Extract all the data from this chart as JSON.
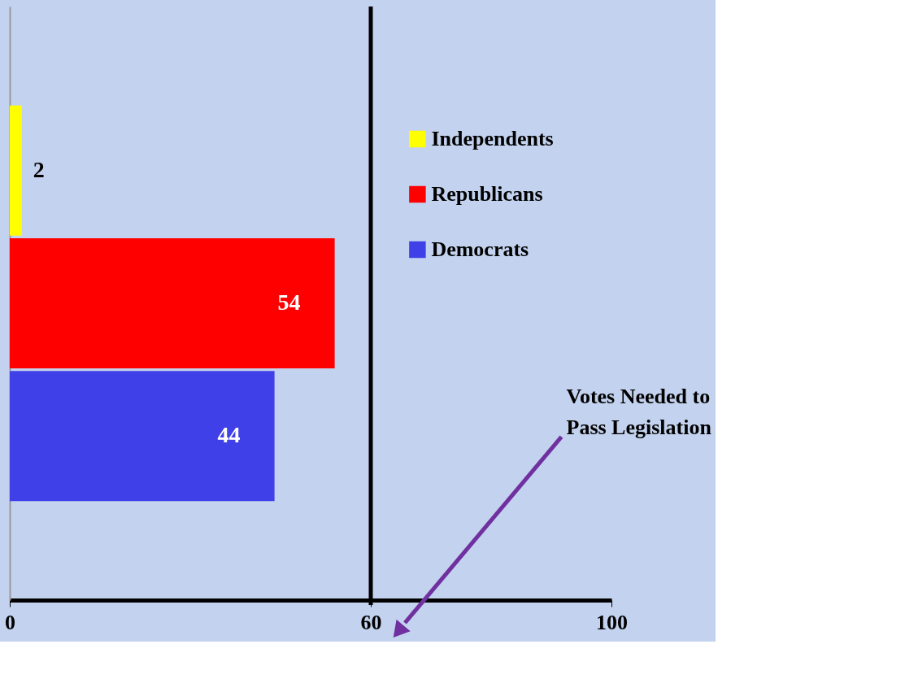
{
  "chart_data": {
    "type": "bar",
    "orientation": "horizontal",
    "categories": [
      null,
      null,
      null
    ],
    "series": [
      {
        "name": "Independents",
        "color": "#ffff00",
        "values": [
          2,
          null,
          null
        ]
      },
      {
        "name": "Republicans",
        "color": "#ff0000",
        "values": [
          null,
          54,
          null
        ]
      },
      {
        "name": "Democrats",
        "color": "#4040e8",
        "values": [
          null,
          null,
          44
        ]
      }
    ],
    "xlim": [
      0,
      100
    ],
    "xticks": [
      0,
      60,
      100
    ],
    "data_labels": true,
    "legend": "top right",
    "grid": false,
    "ref_lines": [
      {
        "axis": "x",
        "value": 60,
        "color": "#000000"
      }
    ],
    "annotations": [
      "Votes Needed to Pass Legislation"
    ]
  }
}
